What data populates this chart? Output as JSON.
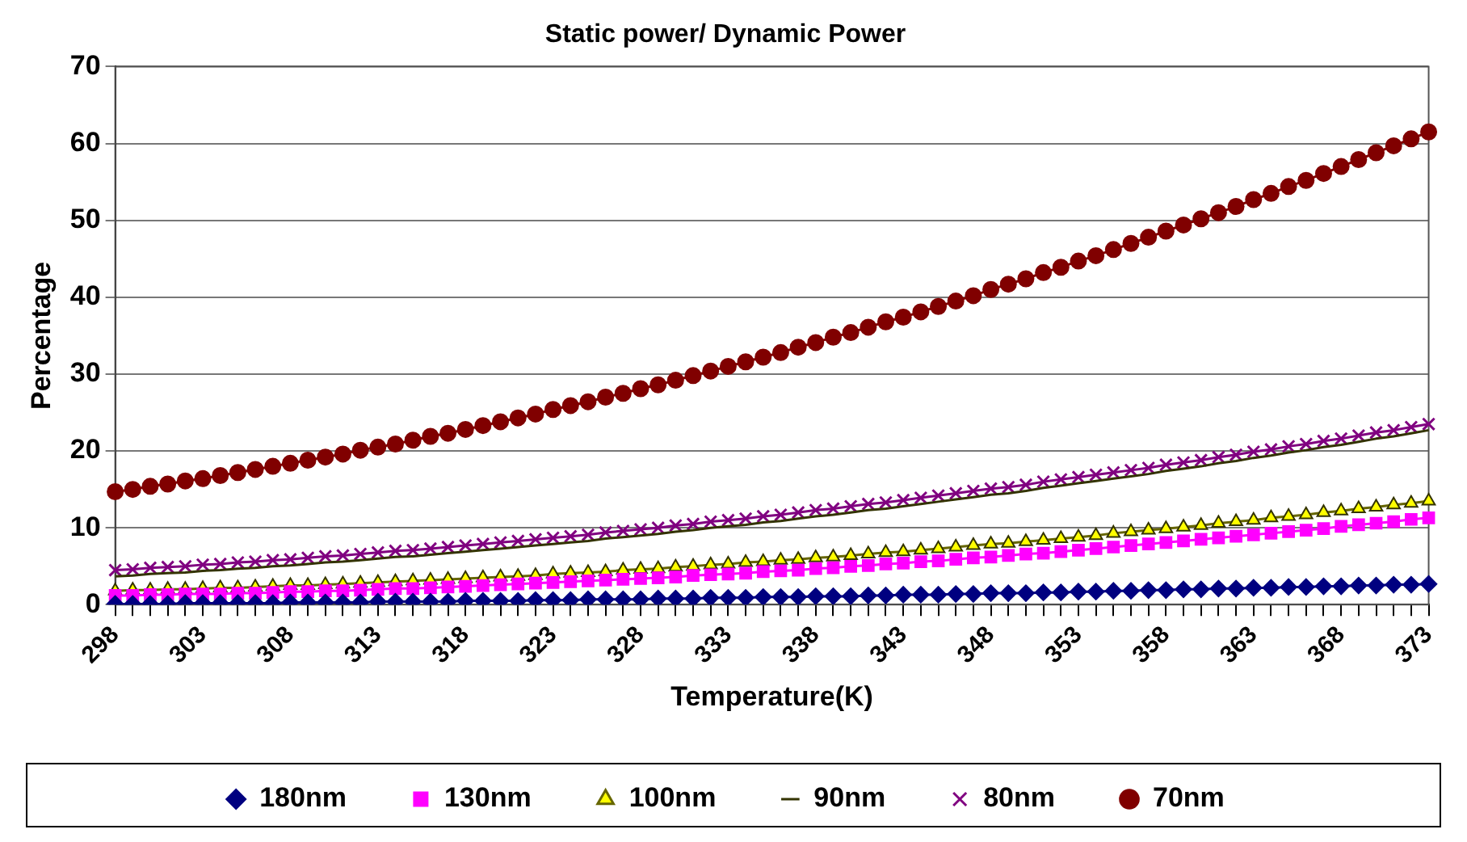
{
  "chart_data": {
    "type": "line",
    "title": "Static power/ Dynamic Power",
    "xlabel": "Temperature(K)",
    "ylabel": "Percentage",
    "categories": [
      "298",
      null,
      null,
      null,
      null,
      "303",
      null,
      null,
      null,
      null,
      "308",
      null,
      null,
      null,
      null,
      "313",
      null,
      null,
      null,
      null,
      "318",
      null,
      null,
      null,
      null,
      "323",
      null,
      null,
      null,
      null,
      "328",
      null,
      null,
      null,
      null,
      "333",
      null,
      null,
      null,
      null,
      "338",
      null,
      null,
      null,
      null,
      "343",
      null,
      null,
      null,
      null,
      "348",
      null,
      null,
      null,
      null,
      "353",
      null,
      null,
      null,
      null,
      "358",
      null,
      null,
      null,
      null,
      "363",
      null,
      null,
      null,
      null,
      "368",
      null,
      null,
      null,
      null,
      "373"
    ],
    "series": [
      {
        "name": "180nm",
        "color": "#000080",
        "marker": "diamond",
        "values": [
          0.1,
          0.1,
          0.1,
          0.1,
          0.2,
          0.2,
          0.2,
          0.2,
          0.2,
          0.2,
          0.3,
          0.3,
          0.3,
          0.3,
          0.3,
          0.4,
          0.4,
          0.4,
          0.4,
          0.4,
          0.5,
          0.5,
          0.5,
          0.5,
          0.6,
          0.6,
          0.6,
          0.7,
          0.7,
          0.7,
          0.7,
          0.8,
          0.8,
          0.8,
          0.9,
          0.9,
          0.9,
          1.0,
          1.0,
          1.0,
          1.1,
          1.1,
          1.1,
          1.2,
          1.2,
          1.3,
          1.3,
          1.3,
          1.4,
          1.4,
          1.5,
          1.5,
          1.5,
          1.6,
          1.6,
          1.7,
          1.7,
          1.8,
          1.8,
          1.9,
          1.9,
          2.0,
          2.0,
          2.1,
          2.1,
          2.2,
          2.2,
          2.3,
          2.3,
          2.4,
          2.4,
          2.5,
          2.5,
          2.6,
          2.6,
          2.7
        ]
      },
      {
        "name": "130nm",
        "color": "#ff00ff",
        "marker": "square",
        "values": [
          1.2,
          1.2,
          1.3,
          1.3,
          1.4,
          1.4,
          1.4,
          1.5,
          1.5,
          1.6,
          1.7,
          1.7,
          1.8,
          1.8,
          1.9,
          2.0,
          2.1,
          2.1,
          2.2,
          2.3,
          2.4,
          2.5,
          2.6,
          2.7,
          2.8,
          2.9,
          3.0,
          3.1,
          3.2,
          3.3,
          3.4,
          3.5,
          3.6,
          3.8,
          3.9,
          4.0,
          4.1,
          4.3,
          4.4,
          4.5,
          4.7,
          4.8,
          5.0,
          5.1,
          5.3,
          5.4,
          5.6,
          5.7,
          5.9,
          6.1,
          6.2,
          6.4,
          6.6,
          6.7,
          6.9,
          7.1,
          7.3,
          7.5,
          7.7,
          7.9,
          8.1,
          8.3,
          8.5,
          8.7,
          8.9,
          9.1,
          9.3,
          9.5,
          9.7,
          9.9,
          10.2,
          10.4,
          10.6,
          10.8,
          11.1,
          11.3
        ]
      },
      {
        "name": "100nm",
        "color": "#ffff00",
        "marker": "triangle",
        "values": [
          1.8,
          1.9,
          1.9,
          2.0,
          2.0,
          2.1,
          2.2,
          2.2,
          2.3,
          2.4,
          2.5,
          2.5,
          2.6,
          2.7,
          2.8,
          2.9,
          3.0,
          3.1,
          3.2,
          3.3,
          3.4,
          3.5,
          3.6,
          3.7,
          3.8,
          4.0,
          4.1,
          4.2,
          4.3,
          4.5,
          4.6,
          4.7,
          4.9,
          5.0,
          5.2,
          5.3,
          5.5,
          5.6,
          5.8,
          5.9,
          6.1,
          6.2,
          6.4,
          6.6,
          6.8,
          6.9,
          7.1,
          7.3,
          7.5,
          7.7,
          7.9,
          8.0,
          8.2,
          8.4,
          8.6,
          8.8,
          9.0,
          9.3,
          9.5,
          9.7,
          9.9,
          10.1,
          10.3,
          10.6,
          10.8,
          11.0,
          11.3,
          11.5,
          11.7,
          12.0,
          12.2,
          12.5,
          12.7,
          13.0,
          13.2,
          13.5
        ]
      },
      {
        "name": "90nm",
        "color": "#333300",
        "marker": "none",
        "values": [
          3.7,
          3.8,
          4.0,
          4.1,
          4.2,
          4.4,
          4.5,
          4.7,
          4.8,
          5.0,
          5.1,
          5.3,
          5.5,
          5.6,
          5.8,
          6.0,
          6.2,
          6.3,
          6.5,
          6.7,
          6.9,
          7.1,
          7.3,
          7.5,
          7.7,
          7.9,
          8.1,
          8.3,
          8.6,
          8.8,
          9.0,
          9.2,
          9.5,
          9.7,
          10.0,
          10.2,
          10.4,
          10.7,
          10.9,
          11.2,
          11.5,
          11.7,
          12.0,
          12.3,
          12.5,
          12.8,
          13.1,
          13.4,
          13.7,
          14.0,
          14.3,
          14.5,
          14.8,
          15.2,
          15.5,
          15.8,
          16.1,
          16.4,
          16.7,
          17.0,
          17.4,
          17.7,
          18.0,
          18.4,
          18.7,
          19.1,
          19.4,
          19.8,
          20.1,
          20.5,
          20.8,
          21.2,
          21.6,
          21.9,
          22.3,
          22.7
        ]
      },
      {
        "name": "80nm",
        "color": "#800080",
        "marker": "cross",
        "values": [
          4.5,
          4.6,
          4.8,
          4.9,
          5.0,
          5.2,
          5.3,
          5.5,
          5.6,
          5.8,
          5.9,
          6.1,
          6.3,
          6.4,
          6.6,
          6.8,
          7.0,
          7.1,
          7.3,
          7.5,
          7.7,
          7.9,
          8.1,
          8.3,
          8.5,
          8.7,
          8.9,
          9.1,
          9.4,
          9.6,
          9.8,
          10.0,
          10.3,
          10.5,
          10.8,
          11.0,
          11.2,
          11.5,
          11.7,
          12.0,
          12.3,
          12.5,
          12.8,
          13.1,
          13.3,
          13.6,
          13.9,
          14.2,
          14.5,
          14.8,
          15.1,
          15.3,
          15.6,
          16.0,
          16.3,
          16.6,
          16.9,
          17.2,
          17.5,
          17.8,
          18.2,
          18.5,
          18.8,
          19.2,
          19.5,
          19.9,
          20.2,
          20.6,
          20.9,
          21.3,
          21.6,
          22.0,
          22.4,
          22.7,
          23.1,
          23.5
        ]
      },
      {
        "name": "70nm",
        "color": "#800000",
        "marker": "circle",
        "values": [
          14.7,
          15.0,
          15.4,
          15.7,
          16.1,
          16.4,
          16.8,
          17.2,
          17.6,
          18.0,
          18.4,
          18.8,
          19.2,
          19.6,
          20.1,
          20.5,
          20.9,
          21.4,
          21.9,
          22.3,
          22.8,
          23.3,
          23.8,
          24.3,
          24.8,
          25.4,
          25.9,
          26.4,
          27.0,
          27.5,
          28.1,
          28.6,
          29.2,
          29.8,
          30.4,
          31.0,
          31.6,
          32.2,
          32.8,
          33.5,
          34.1,
          34.8,
          35.4,
          36.1,
          36.8,
          37.4,
          38.1,
          38.8,
          39.5,
          40.2,
          41.0,
          41.7,
          42.4,
          43.2,
          43.9,
          44.7,
          45.4,
          46.2,
          47.0,
          47.8,
          48.6,
          49.4,
          50.2,
          51.0,
          51.8,
          52.7,
          53.5,
          54.4,
          55.2,
          56.1,
          57.0,
          57.9,
          58.8,
          59.7,
          60.6,
          61.5
        ]
      }
    ],
    "ylim": [
      0,
      70
    ],
    "yticks": [
      0,
      10,
      20,
      30,
      40,
      50,
      60,
      70
    ],
    "grid": "y",
    "legend": "bottom",
    "line_style": "solid"
  }
}
